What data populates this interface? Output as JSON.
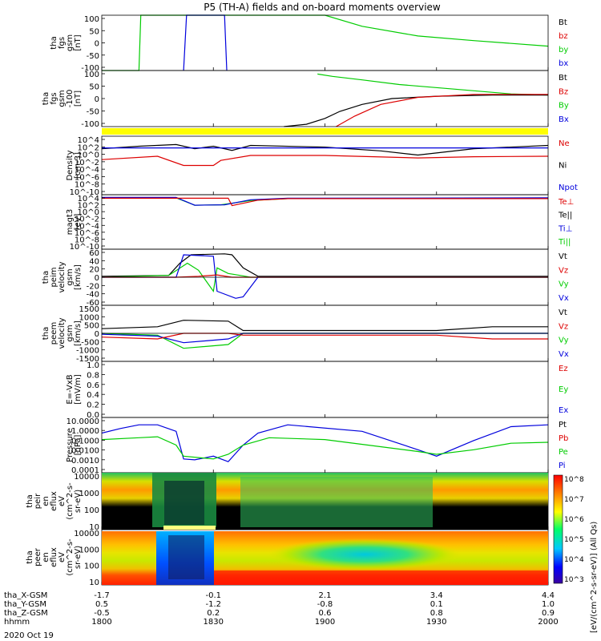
{
  "chart_data": {
    "type": "line",
    "title": "P5 (TH-A) fields and on-board moments overview",
    "x_unit": "minutes since 1800",
    "xlim": [
      0,
      120
    ],
    "x_ticks": [
      0,
      30,
      60,
      90,
      120
    ],
    "panels": [
      {
        "id": "fgs",
        "kind": "line",
        "ylabel": [
          "tha",
          "fgs",
          "gsm",
          "[nT]"
        ],
        "ylim": [
          -100,
          100
        ],
        "ticks": [
          "100",
          "50",
          "0",
          "-50",
          "-100"
        ],
        "legend": [
          {
            "label": "Bt",
            "color": "#000000"
          },
          {
            "label": "bz",
            "color": "#dd0000"
          },
          {
            "label": "by",
            "color": "#00cc00"
          },
          {
            "label": "bx",
            "color": "#0000dd"
          }
        ],
        "series": [
          {
            "name": "by",
            "color": "#00cc00",
            "x": [
              0,
              10,
              10.5,
              60,
              70,
              85,
              100,
              120
            ],
            "y": [
              -100,
              -100,
              100,
              110,
              60,
              25,
              8,
              -12
            ]
          },
          {
            "name": "bx",
            "color": "#0000dd",
            "x": [
              22,
              22.8,
              33,
              33.6
            ],
            "y": [
              -100,
              100,
              100,
              -100
            ]
          }
        ]
      },
      {
        "id": "fgs-lo",
        "kind": "line",
        "ylabel": [
          "tha",
          "fgs",
          "gsm",
          "-100",
          "[nT]"
        ],
        "ylim": [
          -120,
          120
        ],
        "ticks": [
          "100",
          "50",
          "0",
          "-50",
          "-100"
        ],
        "legend": [
          {
            "label": "Bt",
            "color": "#000000"
          },
          {
            "label": "Bz",
            "color": "#dd0000"
          },
          {
            "label": "By",
            "color": "#00cc00"
          },
          {
            "label": "Bx",
            "color": "#0000dd"
          }
        ],
        "series": [
          {
            "name": "By",
            "color": "#00cc00",
            "x": [
              58,
              62,
              70,
              80,
              95,
              110,
              120
            ],
            "y": [
              105,
              95,
              80,
              60,
              40,
              20,
              15
            ]
          },
          {
            "name": "Bt",
            "color": "#000000",
            "x": [
              49,
              55,
              60,
              64,
              70,
              78,
              90,
              105,
              120
            ],
            "y": [
              -120,
              -110,
              -85,
              -55,
              -25,
              0,
              10,
              15,
              15
            ]
          },
          {
            "name": "Bz",
            "color": "#dd0000",
            "x": [
              63,
              68,
              75,
              85,
              100,
              120
            ],
            "y": [
              -120,
              -75,
              -25,
              5,
              18,
              18
            ]
          }
        ]
      },
      {
        "id": "density",
        "kind": "line",
        "ylabel": [
          "Density",
          "[cm-3]"
        ],
        "ylim": [
          -10,
          4
        ],
        "log": true,
        "ticks": [
          "10^4",
          "10^2",
          "10^0",
          "10^-2",
          "10^-4",
          "10^-6",
          "10^-8",
          "10^-10"
        ],
        "legend": [
          {
            "label": "Ne",
            "color": "#dd0000"
          },
          {
            "label": "Ni",
            "color": "#000000"
          },
          {
            "label": "Npot",
            "color": "#0000dd"
          }
        ],
        "series": [
          {
            "name": "Ni",
            "color": "#000000",
            "x": [
              0,
              10,
              20,
              25,
              30,
              35,
              40,
              60,
              75,
              85,
              100,
              120
            ],
            "y": [
              1,
              1.6,
              2,
              1,
              1.6,
              0.6,
              1.8,
              1.4,
              0.5,
              -0.5,
              1,
              1.8
            ]
          },
          {
            "name": "Npot",
            "color": "#0000dd",
            "x": [
              0,
              120
            ],
            "y": [
              1.2,
              1.2
            ]
          },
          {
            "name": "Ne",
            "color": "#dd0000",
            "x": [
              0,
              15,
              22,
              30,
              32,
              40,
              60,
              85,
              100,
              120
            ],
            "y": [
              -1.6,
              -0.8,
              -3,
              -3,
              -1.8,
              -0.6,
              -0.6,
              -1.2,
              -0.9,
              -0.8
            ]
          }
        ]
      },
      {
        "id": "moment-temp",
        "kind": "line",
        "ylabel": [
          "magt3",
          "[eV]"
        ],
        "ylim": [
          -10,
          4
        ],
        "log": true,
        "ticks": [
          "10^4",
          "10^2",
          "10^0",
          "10^-2",
          "10^-4",
          "10^-6",
          "10^-8",
          "10^-10"
        ],
        "legend": [
          {
            "label": "Te⊥",
            "color": "#dd0000"
          },
          {
            "label": "Te||",
            "color": "#000000"
          },
          {
            "label": "Ti⊥",
            "color": "#0000dd"
          },
          {
            "label": "Ti||",
            "color": "#00cc00"
          }
        ],
        "series": [
          {
            "name": "Ti||",
            "color": "#00cc00",
            "x": [
              0,
              20,
              25,
              32,
              40,
              50,
              120
            ],
            "y": [
              3.2,
              3.2,
              1.3,
              1.4,
              2.5,
              3,
              3
            ]
          },
          {
            "name": "Ti⊥",
            "color": "#0000dd",
            "x": [
              0,
              20,
              25,
              33,
              40,
              50,
              120
            ],
            "y": [
              3.3,
              3.3,
              1.3,
              1.4,
              2.7,
              3.1,
              3.2
            ]
          },
          {
            "name": "Te⊥",
            "color": "#dd0000",
            "x": [
              0,
              34,
              35,
              42,
              50,
              120
            ],
            "y": [
              3.1,
              3.1,
              1.2,
              2.6,
              3,
              3
            ]
          }
        ]
      },
      {
        "id": "peim-velocity",
        "kind": "line",
        "ylabel": [
          "tha",
          "peim",
          "velocity",
          "gsm",
          "[km/s]"
        ],
        "ylim": [
          -60,
          60
        ],
        "ticks": [
          "60",
          "40",
          "20",
          "0",
          "-20",
          "-40",
          "-60"
        ],
        "legend": [
          {
            "label": "Vt",
            "color": "#000000"
          },
          {
            "label": "Vz",
            "color": "#dd0000"
          },
          {
            "label": "Vy",
            "color": "#00cc00"
          },
          {
            "label": "Vx",
            "color": "#0000dd"
          }
        ],
        "series": [
          {
            "name": "Vt",
            "color": "#000000",
            "x": [
              0,
              18,
              21,
              24,
              33,
              35,
              38,
              42,
              120
            ],
            "y": [
              2,
              4,
              30,
              48,
              50,
              48,
              20,
              2,
              2
            ]
          },
          {
            "name": "Vy",
            "color": "#00cc00",
            "x": [
              0,
              18,
              23,
              26,
              30,
              31,
              34,
              38,
              40,
              120
            ],
            "y": [
              0,
              4,
              30,
              15,
              -30,
              20,
              8,
              3,
              0,
              0
            ]
          },
          {
            "name": "Vx",
            "color": "#0000dd",
            "x": [
              0,
              20,
              22,
              30,
              31,
              36,
              38,
              42,
              120
            ],
            "y": [
              0,
              0,
              48,
              45,
              -30,
              -45,
              -42,
              0,
              0
            ]
          },
          {
            "name": "Vz",
            "color": "#dd0000",
            "x": [
              0,
              20,
              26,
              31,
              35,
              38,
              120
            ],
            "y": [
              0,
              0,
              2,
              5,
              0,
              0,
              0
            ]
          }
        ]
      },
      {
        "id": "peem-velocity",
        "kind": "line",
        "ylabel": [
          "tha",
          "peem",
          "velocity",
          "gsm",
          "[km/s]"
        ],
        "ylim": [
          -1500,
          1500
        ],
        "ticks": [
          "1500",
          "1000",
          "500",
          "0",
          "-500",
          "-1000",
          "-1500"
        ],
        "legend": [
          {
            "label": "Vt",
            "color": "#000000"
          },
          {
            "label": "Vz",
            "color": "#dd0000"
          },
          {
            "label": "Vy",
            "color": "#00cc00"
          },
          {
            "label": "Vx",
            "color": "#0000dd"
          }
        ],
        "series": [
          {
            "name": "Vt",
            "color": "#000000",
            "x": [
              0,
              15,
              22,
              34,
              38,
              90,
              105,
              120
            ],
            "y": [
              250,
              350,
              700,
              650,
              150,
              150,
              350,
              350
            ]
          },
          {
            "name": "Vy",
            "color": "#00cc00",
            "x": [
              0,
              15,
              22,
              34,
              38,
              120
            ],
            "y": [
              0,
              -100,
              -800,
              -600,
              0,
              0
            ]
          },
          {
            "name": "Vx",
            "color": "#0000dd",
            "x": [
              0,
              15,
              22,
              34,
              38,
              120
            ],
            "y": [
              -50,
              -150,
              -500,
              -300,
              0,
              0
            ]
          },
          {
            "name": "Vz",
            "color": "#dd0000",
            "x": [
              0,
              15,
              22,
              34,
              38,
              90,
              105,
              120
            ],
            "y": [
              -200,
              -300,
              0,
              0,
              -100,
              -100,
              -300,
              -300
            ]
          }
        ]
      },
      {
        "id": "efield",
        "kind": "line",
        "ylabel": [
          "E=-VxB",
          "[mV/m]"
        ],
        "ylim": [
          0,
          1
        ],
        "ticks": [
          "1.0",
          "0.8",
          "0.6",
          "0.4",
          "0.2",
          "0.0"
        ],
        "legend": [
          {
            "label": "Ez",
            "color": "#dd0000"
          },
          {
            "label": "Ey",
            "color": "#00cc00"
          },
          {
            "label": "Ex",
            "color": "#0000dd"
          }
        ],
        "series": []
      },
      {
        "id": "pressure",
        "kind": "line",
        "ylabel": [
          "Pressure",
          "[nPa]"
        ],
        "ylim": [
          -4,
          2
        ],
        "log": true,
        "ticks": [
          "10.0000",
          "1.0000",
          "0.1000",
          "0.0100",
          "0.0010",
          "0.0001"
        ],
        "legend": [
          {
            "label": "Pt",
            "color": "#000000"
          },
          {
            "label": "Pb",
            "color": "#dd0000"
          },
          {
            "label": "Pe",
            "color": "#00cc00"
          },
          {
            "label": "Pi",
            "color": "#0000dd"
          }
        ],
        "series": [
          {
            "name": "Pi",
            "color": "#0000dd",
            "x": [
              0,
              5,
              10,
              15,
              20,
              22,
              25,
              30,
              34,
              38,
              42,
              50,
              70,
              85,
              90,
              100,
              110,
              120
            ],
            "y": [
              0.3,
              0.8,
              1.2,
              1.2,
              0.5,
              -2.5,
              -2.6,
              -2.2,
              -2.8,
              -1,
              0.3,
              1.2,
              0.5,
              -1.5,
              -2.2,
              -0.5,
              1,
              1.2
            ]
          },
          {
            "name": "Pe",
            "color": "#00cc00",
            "x": [
              0,
              10,
              15,
              20,
              22,
              30,
              34,
              38,
              45,
              60,
              85,
              90,
              100,
              110,
              120
            ],
            "y": [
              -0.4,
              -0.2,
              -0.1,
              -1,
              -2.2,
              -2.5,
              -2,
              -1,
              -0.2,
              -0.4,
              -1.7,
              -2,
              -1.5,
              -0.8,
              -0.7
            ]
          }
        ]
      },
      {
        "id": "peir",
        "kind": "spectrogram",
        "ylabel": [
          "tha",
          "peir",
          "en",
          "eflux",
          "eV",
          "(cm^2-s-",
          "sr-eV)"
        ],
        "ticks": [
          "10000",
          "1000",
          "100",
          "10"
        ]
      },
      {
        "id": "peer",
        "kind": "spectrogram",
        "ylabel": [
          "tha",
          "peer",
          "en",
          "eflux",
          "eV",
          "(cm^2-s-",
          "sr-eV)"
        ],
        "ticks": [
          "10000",
          "1000",
          "100",
          "10"
        ]
      }
    ],
    "colorbar": {
      "label": "[eV/(cm^2-s-sr-eV)] (All Qs)",
      "ticks": [
        "10^8",
        "10^7",
        "10^6",
        "10^5",
        "10^4",
        "10^3"
      ]
    },
    "ephemeris": {
      "rows": [
        {
          "label": "tha_X-GSM",
          "values": [
            "-1.7",
            "-0.1",
            "2.1",
            "3.4",
            "4.4"
          ]
        },
        {
          "label": "tha_Y-GSM",
          "values": [
            "0.5",
            "-1.2",
            "-0.8",
            "0.1",
            "1.0"
          ]
        },
        {
          "label": "tha_Z-GSM",
          "values": [
            "-0.5",
            "0.2",
            "0.6",
            "0.8",
            "0.9"
          ]
        },
        {
          "label": "hhmm",
          "values": [
            "1800",
            "1830",
            "1900",
            "1930",
            "2000"
          ]
        }
      ],
      "date": "2020 Oct 19"
    }
  }
}
